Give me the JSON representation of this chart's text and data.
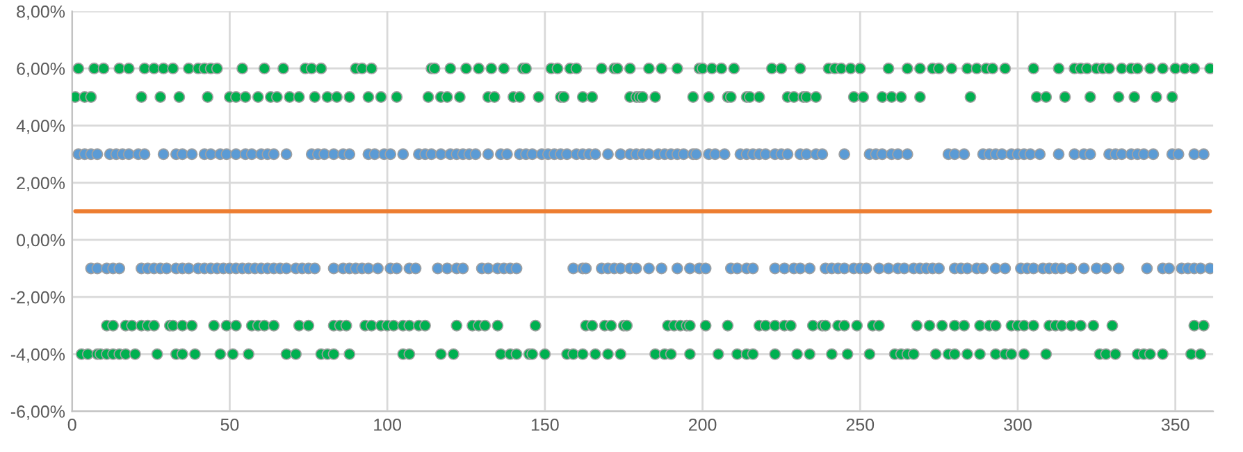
{
  "chart_data": {
    "type": "scatter",
    "xlim": [
      0,
      362
    ],
    "ylim": [
      -6,
      8
    ],
    "xticks": [
      0,
      50,
      100,
      150,
      200,
      250,
      300,
      350
    ],
    "yticks": [
      {
        "value": -6,
        "label": "-6,00%"
      },
      {
        "value": -4,
        "label": "-4,00%"
      },
      {
        "value": -2,
        "label": "-2,00%"
      },
      {
        "value": 0,
        "label": "0,00%"
      },
      {
        "value": 2,
        "label": "2,00%"
      },
      {
        "value": 4,
        "label": "4,00%"
      },
      {
        "value": 6,
        "label": "6,00%"
      },
      {
        "value": 8,
        "label": "8,00%"
      }
    ],
    "grid": true,
    "marker": "circle",
    "series": [
      {
        "color": "#00b050",
        "x": [
          2,
          7,
          10,
          15,
          18,
          23,
          26,
          29,
          32,
          37,
          40,
          42,
          44,
          46,
          54,
          61,
          67,
          74,
          76,
          79,
          90,
          92,
          95,
          114,
          115,
          120,
          125,
          129,
          133,
          137,
          143,
          144,
          152,
          154,
          158,
          160,
          168,
          172,
          173,
          177,
          183,
          187,
          192,
          199,
          200,
          203,
          206,
          210,
          222,
          225,
          231,
          240,
          242,
          244,
          247,
          250,
          259,
          265,
          269,
          273,
          275,
          279,
          284,
          287,
          290,
          292,
          296,
          305,
          313,
          318,
          320,
          322,
          325,
          327,
          329,
          333,
          336,
          338,
          342,
          346,
          350,
          353,
          356,
          361
        ],
        "values": [
          6,
          6,
          6,
          6,
          6,
          6,
          6,
          6,
          6,
          6,
          6,
          6,
          6,
          6,
          6,
          6,
          6,
          6,
          6,
          6,
          6,
          6,
          6,
          6,
          6,
          6,
          6,
          6,
          6,
          6,
          6,
          6,
          6,
          6,
          6,
          6,
          6,
          6,
          6,
          6,
          6,
          6,
          6,
          6,
          6,
          6,
          6,
          6,
          6,
          6,
          6,
          6,
          6,
          6,
          6,
          6,
          6,
          6,
          6,
          6,
          6,
          6,
          6,
          6,
          6,
          6,
          6,
          6,
          6,
          6,
          6,
          6,
          6,
          6,
          6,
          6,
          6,
          6,
          6,
          6,
          6,
          6,
          6,
          6
        ]
      },
      {
        "color": "#00b050",
        "x": [
          1,
          4,
          6,
          22,
          28,
          34,
          43,
          50,
          52,
          55,
          59,
          63,
          65,
          69,
          72,
          77,
          81,
          84,
          88,
          94,
          98,
          103,
          113,
          117,
          119,
          123,
          132,
          134,
          140,
          142,
          148,
          155,
          156,
          162,
          165,
          177,
          179,
          180,
          181,
          185,
          197,
          202,
          208,
          209,
          214,
          215,
          218,
          227,
          229,
          232,
          233,
          236,
          248,
          251,
          257,
          260,
          263,
          269,
          285,
          306,
          309,
          315,
          323,
          332,
          337,
          344,
          349
        ],
        "values": [
          5,
          5,
          5,
          5,
          5,
          5,
          5,
          5,
          5,
          5,
          5,
          5,
          5,
          5,
          5,
          5,
          5,
          5,
          5,
          5,
          5,
          5,
          5,
          5,
          5,
          5,
          5,
          5,
          5,
          5,
          5,
          5,
          5,
          5,
          5,
          5,
          5,
          5,
          5,
          5,
          5,
          5,
          5,
          5,
          5,
          5,
          5,
          5,
          5,
          5,
          5,
          5,
          5,
          5,
          5,
          5,
          5,
          5,
          5,
          5,
          5,
          5,
          5,
          5,
          5,
          5,
          5
        ]
      },
      {
        "color": "#00b050",
        "x": [
          11,
          13,
          17,
          19,
          22,
          24,
          26,
          31,
          32,
          35,
          38,
          45,
          49,
          52,
          57,
          59,
          61,
          64,
          72,
          75,
          83,
          85,
          87,
          93,
          95,
          98,
          100,
          102,
          105,
          107,
          110,
          112,
          122,
          127,
          129,
          131,
          135,
          147,
          163,
          165,
          169,
          171,
          175,
          176,
          189,
          191,
          193,
          195,
          196,
          201,
          208,
          218,
          220,
          223,
          226,
          228,
          235,
          238,
          239,
          243,
          245,
          249,
          254,
          256,
          268,
          272,
          276,
          280,
          283,
          288,
          291,
          293,
          298,
          300,
          302,
          305,
          310,
          312,
          314,
          317,
          320,
          324,
          330,
          356,
          359
        ],
        "values": [
          -3,
          -3,
          -3,
          -3,
          -3,
          -3,
          -3,
          -3,
          -3,
          -3,
          -3,
          -3,
          -3,
          -3,
          -3,
          -3,
          -3,
          -3,
          -3,
          -3,
          -3,
          -3,
          -3,
          -3,
          -3,
          -3,
          -3,
          -3,
          -3,
          -3,
          -3,
          -3,
          -3,
          -3,
          -3,
          -3,
          -3,
          -3,
          -3,
          -3,
          -3,
          -3,
          -3,
          -3,
          -3,
          -3,
          -3,
          -3,
          -3,
          -3,
          -3,
          -3,
          -3,
          -3,
          -3,
          -3,
          -3,
          -3,
          -3,
          -3,
          -3,
          -3,
          -3,
          -3,
          -3,
          -3,
          -3,
          -3,
          -3,
          -3,
          -3,
          -3,
          -3,
          -3,
          -3,
          -3,
          -3,
          -3,
          -3,
          -3,
          -3,
          -3,
          -3,
          -3,
          -3
        ]
      },
      {
        "color": "#00b050",
        "x": [
          3,
          5,
          8,
          9,
          11,
          13,
          15,
          17,
          20,
          27,
          33,
          35,
          39,
          47,
          51,
          56,
          68,
          71,
          79,
          81,
          83,
          88,
          105,
          107,
          117,
          121,
          136,
          139,
          141,
          145,
          146,
          150,
          157,
          159,
          162,
          166,
          170,
          174,
          185,
          188,
          190,
          196,
          205,
          211,
          214,
          216,
          223,
          230,
          234,
          241,
          246,
          253,
          261,
          263,
          265,
          267,
          274,
          278,
          280,
          284,
          288,
          293,
          296,
          298,
          302,
          309,
          326,
          328,
          331,
          338,
          340,
          342,
          346,
          355,
          358
        ],
        "values": [
          -4,
          -4,
          -4,
          -4,
          -4,
          -4,
          -4,
          -4,
          -4,
          -4,
          -4,
          -4,
          -4,
          -4,
          -4,
          -4,
          -4,
          -4,
          -4,
          -4,
          -4,
          -4,
          -4,
          -4,
          -4,
          -4,
          -4,
          -4,
          -4,
          -4,
          -4,
          -4,
          -4,
          -4,
          -4,
          -4,
          -4,
          -4,
          -4,
          -4,
          -4,
          -4,
          -4,
          -4,
          -4,
          -4,
          -4,
          -4,
          -4,
          -4,
          -4,
          -4,
          -4,
          -4,
          -4,
          -4,
          -4,
          -4,
          -4,
          -4,
          -4,
          -4,
          -4,
          -4,
          -4,
          -4,
          -4,
          -4,
          -4,
          -4,
          -4,
          -4,
          -4,
          -4,
          -4
        ]
      },
      {
        "color": "#5b9bd5",
        "x": [
          2,
          4,
          6,
          8,
          12,
          14,
          16,
          18,
          21,
          23,
          29,
          33,
          35,
          38,
          42,
          44,
          47,
          49,
          52,
          55,
          57,
          60,
          62,
          64,
          68,
          76,
          78,
          80,
          83,
          86,
          88,
          94,
          96,
          99,
          101,
          105,
          110,
          112,
          114,
          117,
          120,
          122,
          124,
          126,
          128,
          132,
          136,
          138,
          142,
          144,
          146,
          149,
          151,
          153,
          155,
          157,
          160,
          162,
          164,
          166,
          170,
          174,
          177,
          179,
          181,
          183,
          186,
          188,
          190,
          192,
          194,
          197,
          198,
          202,
          204,
          207,
          212,
          214,
          216,
          218,
          220,
          223,
          225,
          227,
          231,
          233,
          236,
          238,
          245,
          253,
          255,
          257,
          260,
          262,
          265,
          278,
          280,
          283,
          289,
          291,
          293,
          295,
          298,
          300,
          302,
          304,
          307,
          313,
          318,
          321,
          323,
          329,
          331,
          333,
          336,
          338,
          340,
          343,
          349,
          351,
          356,
          359
        ],
        "values": [
          3,
          3,
          3,
          3,
          3,
          3,
          3,
          3,
          3,
          3,
          3,
          3,
          3,
          3,
          3,
          3,
          3,
          3,
          3,
          3,
          3,
          3,
          3,
          3,
          3,
          3,
          3,
          3,
          3,
          3,
          3,
          3,
          3,
          3,
          3,
          3,
          3,
          3,
          3,
          3,
          3,
          3,
          3,
          3,
          3,
          3,
          3,
          3,
          3,
          3,
          3,
          3,
          3,
          3,
          3,
          3,
          3,
          3,
          3,
          3,
          3,
          3,
          3,
          3,
          3,
          3,
          3,
          3,
          3,
          3,
          3,
          3,
          3,
          3,
          3,
          3,
          3,
          3,
          3,
          3,
          3,
          3,
          3,
          3,
          3,
          3,
          3,
          3,
          3,
          3,
          3,
          3,
          3,
          3,
          3,
          3,
          3,
          3,
          3,
          3,
          3,
          3,
          3,
          3,
          3,
          3,
          3,
          3,
          3,
          3,
          3,
          3,
          3,
          3,
          3,
          3,
          3,
          3,
          3,
          3,
          3,
          3
        ]
      },
      {
        "color": "#5b9bd5",
        "x": [
          6,
          8,
          11,
          13,
          15,
          22,
          24,
          26,
          28,
          30,
          33,
          35,
          37,
          40,
          42,
          44,
          46,
          48,
          50,
          52,
          54,
          56,
          58,
          60,
          62,
          64,
          66,
          68,
          71,
          73,
          75,
          77,
          83,
          86,
          88,
          90,
          92,
          94,
          97,
          101,
          103,
          107,
          109,
          116,
          119,
          122,
          124,
          130,
          132,
          135,
          137,
          139,
          141,
          159,
          162,
          163,
          168,
          170,
          172,
          174,
          177,
          179,
          183,
          187,
          192,
          196,
          199,
          201,
          209,
          211,
          214,
          216,
          223,
          226,
          229,
          231,
          234,
          239,
          241,
          243,
          245,
          248,
          250,
          252,
          256,
          259,
          262,
          264,
          267,
          269,
          271,
          273,
          275,
          280,
          282,
          284,
          287,
          289,
          293,
          296,
          301,
          303,
          305,
          308,
          310,
          312,
          314,
          317,
          321,
          325,
          328,
          332,
          341,
          346,
          348,
          352,
          354,
          356,
          358,
          361
        ],
        "values": [
          -1,
          -1,
          -1,
          -1,
          -1,
          -1,
          -1,
          -1,
          -1,
          -1,
          -1,
          -1,
          -1,
          -1,
          -1,
          -1,
          -1,
          -1,
          -1,
          -1,
          -1,
          -1,
          -1,
          -1,
          -1,
          -1,
          -1,
          -1,
          -1,
          -1,
          -1,
          -1,
          -1,
          -1,
          -1,
          -1,
          -1,
          -1,
          -1,
          -1,
          -1,
          -1,
          -1,
          -1,
          -1,
          -1,
          -1,
          -1,
          -1,
          -1,
          -1,
          -1,
          -1,
          -1,
          -1,
          -1,
          -1,
          -1,
          -1,
          -1,
          -1,
          -1,
          -1,
          -1,
          -1,
          -1,
          -1,
          -1,
          -1,
          -1,
          -1,
          -1,
          -1,
          -1,
          -1,
          -1,
          -1,
          -1,
          -1,
          -1,
          -1,
          -1,
          -1,
          -1,
          -1,
          -1,
          -1,
          -1,
          -1,
          -1,
          -1,
          -1,
          -1,
          -1,
          -1,
          -1,
          -1,
          -1,
          -1,
          -1,
          -1,
          -1,
          -1,
          -1,
          -1,
          -1,
          -1,
          -1,
          -1,
          -1,
          -1,
          -1,
          -1,
          -1,
          -1,
          -1,
          -1,
          -1,
          -1,
          -1
        ]
      },
      {
        "type": "line",
        "color": "#ed7d31",
        "marker": "none",
        "x": [
          1,
          361
        ],
        "values": [
          1,
          1
        ]
      }
    ]
  }
}
